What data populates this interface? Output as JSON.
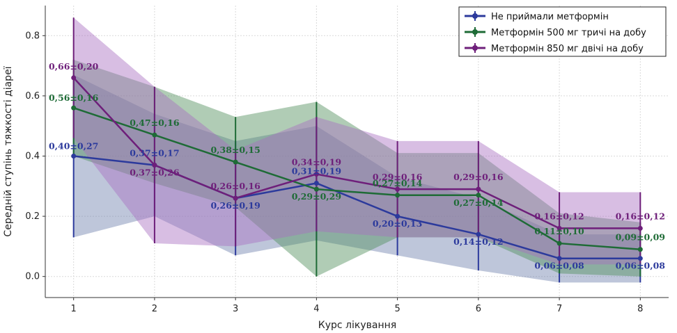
{
  "chart_data": {
    "type": "line",
    "xlabel": "Курс лікування",
    "ylabel": "Середній ступінь тяжкості діареї",
    "x": [
      1,
      2,
      3,
      4,
      5,
      6,
      7,
      8
    ],
    "xlim": [
      0.65,
      8.35
    ],
    "ylim": [
      -0.07,
      0.9
    ],
    "yticks": [
      0.0,
      0.2,
      0.4,
      0.6,
      0.8
    ],
    "ytick_labels": [
      "0.0",
      "0.2",
      "0.4",
      "0.6",
      "0.8"
    ],
    "grid": true,
    "legend_position": "top-right",
    "series": [
      {
        "name": "Не приймали метформін",
        "color": "#2c3a9c",
        "band_color": "#6e80ad",
        "values": [
          0.4,
          0.37,
          0.26,
          0.31,
          0.2,
          0.14,
          0.06,
          0.06
        ],
        "errors": [
          0.27,
          0.17,
          0.19,
          0.19,
          0.13,
          0.12,
          0.08,
          0.08
        ],
        "labels": [
          "0,40±0,27",
          "0,37±0,17",
          "0,26±0,19",
          "0,31±0,19",
          "0,20±0,13",
          "0,14±0,12",
          "0,06±0,08",
          "0,06±0,08"
        ]
      },
      {
        "name": "Метформін 500 мг тричі на добу",
        "color": "#1e6b36",
        "band_color": "#4f8f5a",
        "values": [
          0.56,
          0.47,
          0.38,
          0.29,
          0.27,
          0.27,
          0.11,
          0.09
        ],
        "errors": [
          0.16,
          0.16,
          0.15,
          0.29,
          0.14,
          0.14,
          0.1,
          0.09
        ],
        "labels": [
          "0,56±0,16",
          "0,47±0,16",
          "0,38±0,15",
          "0,29±0,29",
          "0,27±0,14",
          "0,27±0,14",
          "0,11±0,10",
          "0,09±0,09"
        ]
      },
      {
        "name": "Метформін 850 мг двічі на добу",
        "color": "#6e1f7a",
        "band_color": "#a86ec0",
        "values": [
          0.66,
          0.37,
          0.26,
          0.34,
          0.29,
          0.29,
          0.16,
          0.16
        ],
        "errors": [
          0.2,
          0.26,
          0.16,
          0.19,
          0.16,
          0.16,
          0.12,
          0.12
        ],
        "labels": [
          "0,66±0,20",
          "0,37±0,26",
          "0,26±0,16",
          "0,34±0,19",
          "0,29±0,16",
          "0,29±0,16",
          "0,16±0,12",
          "0,16±0,12"
        ]
      }
    ]
  }
}
